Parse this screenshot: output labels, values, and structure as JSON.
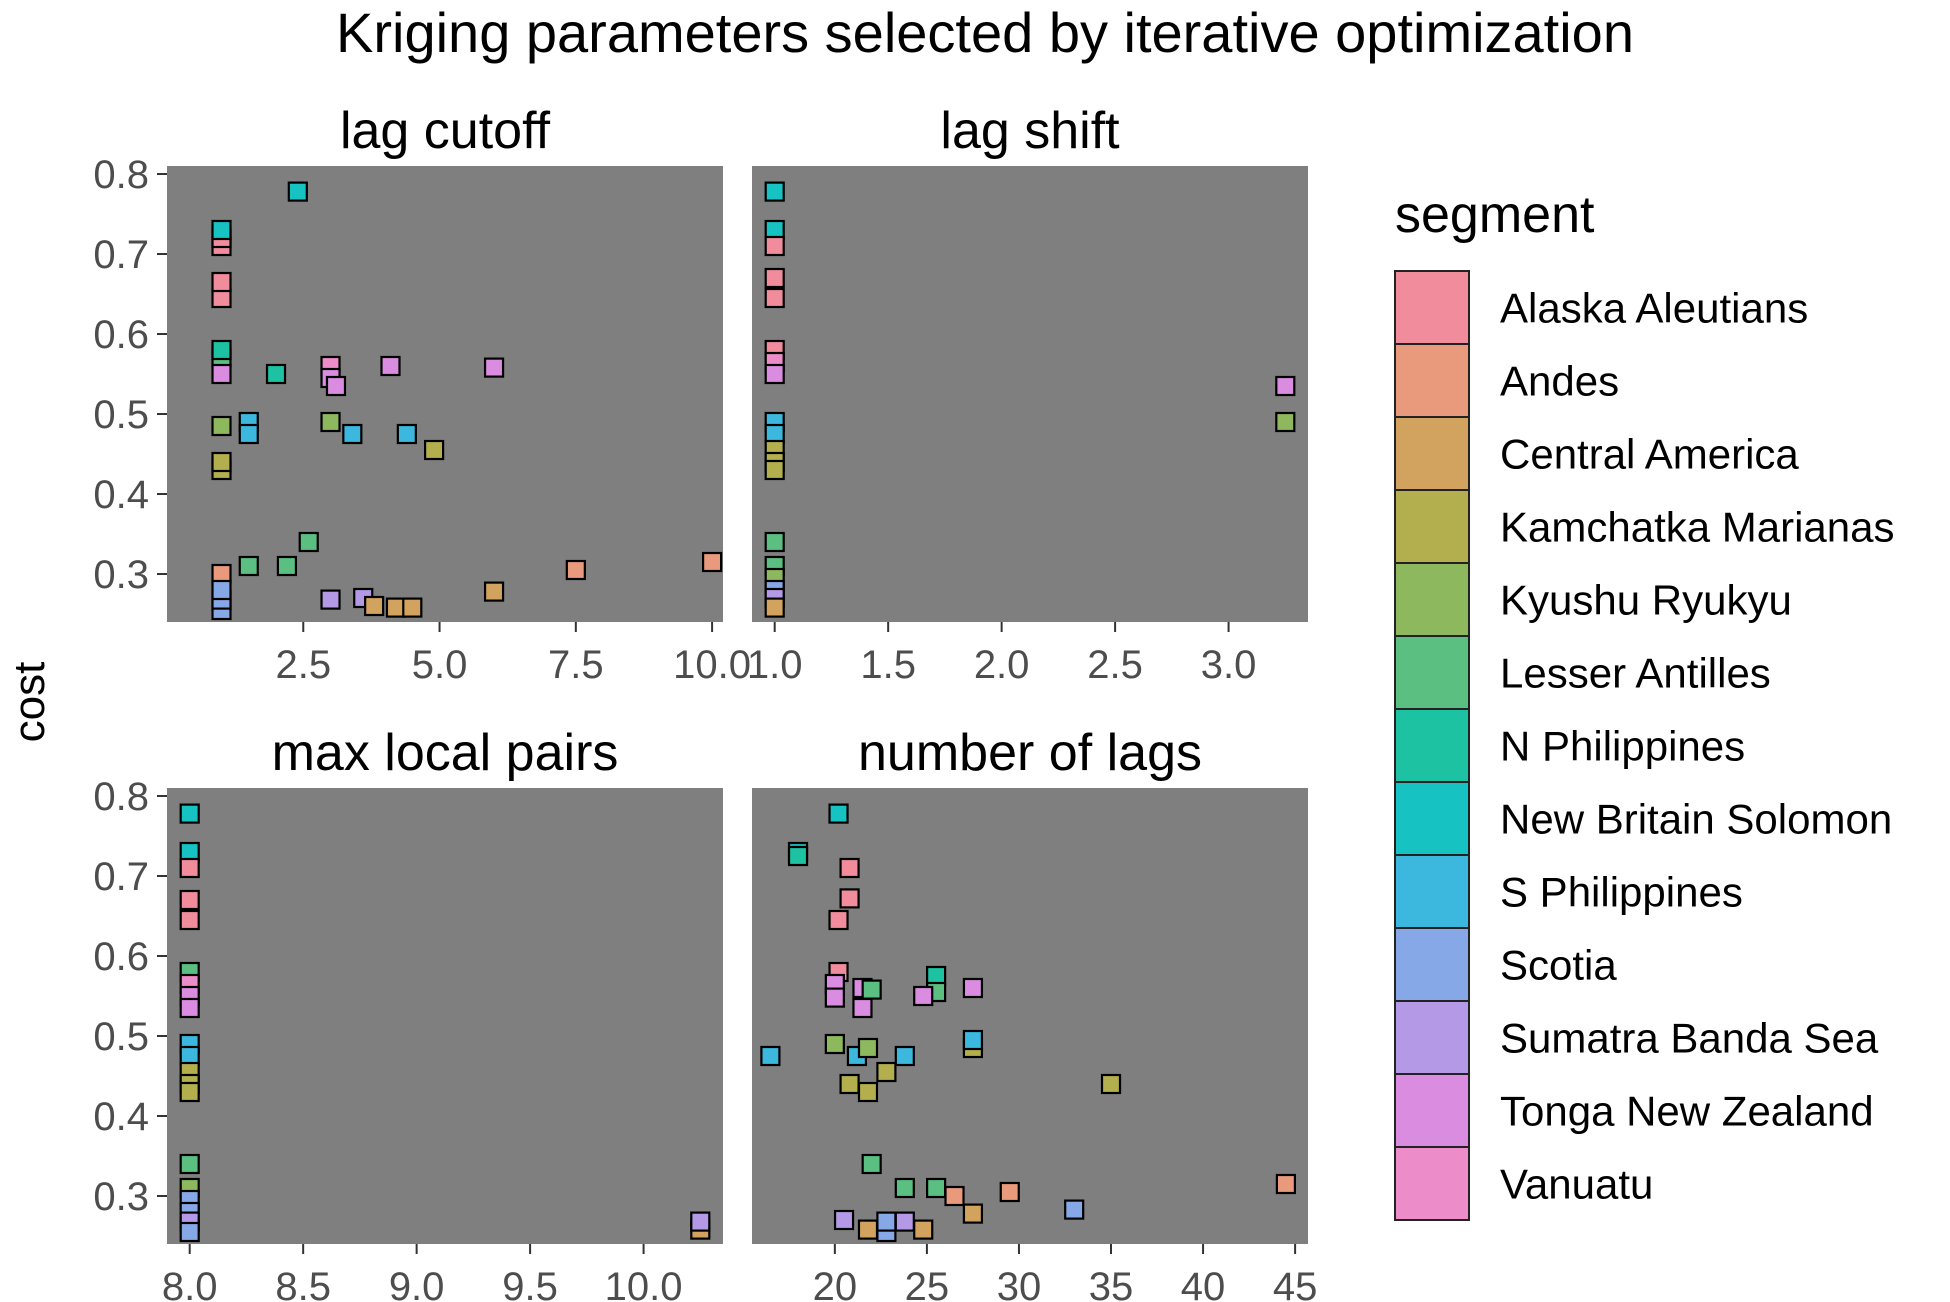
{
  "chart_data": {
    "type": "scatter",
    "title": "Kriging parameters selected by iterative optimization",
    "ylabel": "cost",
    "legend": {
      "title": "segment",
      "placement": "right",
      "entries": [
        {
          "name": "Alaska Aleutians",
          "color": "#F08C9C"
        },
        {
          "name": "Andes",
          "color": "#E99A7C"
        },
        {
          "name": "Central America",
          "color": "#D2A35E"
        },
        {
          "name": "Kamchatka Marianas",
          "color": "#B3AE4E"
        },
        {
          "name": "Kyushu Ryukyu",
          "color": "#8EB85E"
        },
        {
          "name": "Lesser Antilles",
          "color": "#5CBF82"
        },
        {
          "name": "N Philippines",
          "color": "#1DC2A2"
        },
        {
          "name": "New Britain Solomon",
          "color": "#17C2C2"
        },
        {
          "name": "S Philippines",
          "color": "#3CB8DE"
        },
        {
          "name": "Scotia",
          "color": "#86A8E6"
        },
        {
          "name": "Sumatra Banda Sea",
          "color": "#B49AE6"
        },
        {
          "name": "Tonga New Zealand",
          "color": "#DA8CE0"
        },
        {
          "name": "Vanuatu",
          "color": "#EC8CC8"
        }
      ]
    },
    "panel_background": "#7F7F7F",
    "ylim": [
      0.24,
      0.81
    ],
    "yticks": [
      "0.3",
      "0.4",
      "0.5",
      "0.6",
      "0.7",
      "0.8"
    ],
    "panels": [
      {
        "title": "lag cutoff",
        "xlim": [
          0.0,
          10.2
        ],
        "xticks": [
          "2.5",
          "5.0",
          "7.5",
          "10.0"
        ],
        "points": [
          {
            "x": 1.0,
            "y": 0.645,
            "s": "Alaska Aleutians"
          },
          {
            "x": 1.0,
            "y": 0.665,
            "s": "Alaska Aleutians"
          },
          {
            "x": 1.0,
            "y": 0.71,
            "s": "Alaska Aleutians"
          },
          {
            "x": 1.0,
            "y": 0.72,
            "s": "Alaska Aleutians"
          },
          {
            "x": 1.0,
            "y": 0.3,
            "s": "Andes"
          },
          {
            "x": 1.0,
            "y": 0.43,
            "s": "Kamchatka Marianas"
          },
          {
            "x": 1.0,
            "y": 0.44,
            "s": "Kamchatka Marianas"
          },
          {
            "x": 1.0,
            "y": 0.485,
            "s": "Kyushu Ryukyu"
          },
          {
            "x": 1.0,
            "y": 0.57,
            "s": "Lesser Antilles"
          },
          {
            "x": 1.0,
            "y": 0.58,
            "s": "N Philippines"
          },
          {
            "x": 1.0,
            "y": 0.73,
            "s": "New Britain Solomon"
          },
          {
            "x": 1.0,
            "y": 0.255,
            "s": "Scotia"
          },
          {
            "x": 1.0,
            "y": 0.268,
            "s": "Scotia"
          },
          {
            "x": 1.0,
            "y": 0.28,
            "s": "Scotia"
          },
          {
            "x": 1.0,
            "y": 0.55,
            "s": "Tonga New Zealand"
          },
          {
            "x": 2.4,
            "y": 0.778,
            "s": "New Britain Solomon"
          },
          {
            "x": 2.0,
            "y": 0.55,
            "s": "N Philippines"
          },
          {
            "x": 1.5,
            "y": 0.49,
            "s": "S Philippines"
          },
          {
            "x": 1.5,
            "y": 0.475,
            "s": "S Philippines"
          },
          {
            "x": 1.5,
            "y": 0.31,
            "s": "Lesser Antilles"
          },
          {
            "x": 2.2,
            "y": 0.31,
            "s": "Lesser Antilles"
          },
          {
            "x": 2.6,
            "y": 0.34,
            "s": "Lesser Antilles"
          },
          {
            "x": 3.0,
            "y": 0.56,
            "s": "Vanuatu"
          },
          {
            "x": 3.0,
            "y": 0.545,
            "s": "Tonga New Zealand"
          },
          {
            "x": 3.1,
            "y": 0.535,
            "s": "Tonga New Zealand"
          },
          {
            "x": 3.0,
            "y": 0.49,
            "s": "Kyushu Ryukyu"
          },
          {
            "x": 3.4,
            "y": 0.475,
            "s": "S Philippines"
          },
          {
            "x": 3.0,
            "y": 0.268,
            "s": "Sumatra Banda Sea"
          },
          {
            "x": 3.6,
            "y": 0.27,
            "s": "Sumatra Banda Sea"
          },
          {
            "x": 3.8,
            "y": 0.26,
            "s": "Central America"
          },
          {
            "x": 4.1,
            "y": 0.56,
            "s": "Tonga New Zealand"
          },
          {
            "x": 4.4,
            "y": 0.475,
            "s": "S Philippines"
          },
          {
            "x": 4.2,
            "y": 0.258,
            "s": "Central America"
          },
          {
            "x": 4.5,
            "y": 0.258,
            "s": "Central America"
          },
          {
            "x": 4.9,
            "y": 0.455,
            "s": "Kamchatka Marianas"
          },
          {
            "x": 6.0,
            "y": 0.558,
            "s": "Tonga New Zealand"
          },
          {
            "x": 6.0,
            "y": 0.278,
            "s": "Central America"
          },
          {
            "x": 7.5,
            "y": 0.305,
            "s": "Andes"
          },
          {
            "x": 10.0,
            "y": 0.315,
            "s": "Andes"
          }
        ]
      },
      {
        "title": "lag shift",
        "xlim": [
          0.9,
          3.35
        ],
        "xticks": [
          "1.0",
          "1.5",
          "2.0",
          "2.5",
          "3.0"
        ],
        "points": [
          {
            "x": 1.0,
            "y": 0.778,
            "s": "New Britain Solomon"
          },
          {
            "x": 1.0,
            "y": 0.73,
            "s": "New Britain Solomon"
          },
          {
            "x": 1.0,
            "y": 0.71,
            "s": "Alaska Aleutians"
          },
          {
            "x": 1.0,
            "y": 0.67,
            "s": "Alaska Aleutians"
          },
          {
            "x": 1.0,
            "y": 0.645,
            "s": "Alaska Aleutians"
          },
          {
            "x": 1.0,
            "y": 0.58,
            "s": "Alaska Aleutians"
          },
          {
            "x": 1.0,
            "y": 0.565,
            "s": "Vanuatu"
          },
          {
            "x": 1.0,
            "y": 0.55,
            "s": "Tonga New Zealand"
          },
          {
            "x": 1.0,
            "y": 0.49,
            "s": "S Philippines"
          },
          {
            "x": 1.0,
            "y": 0.475,
            "s": "S Philippines"
          },
          {
            "x": 1.0,
            "y": 0.455,
            "s": "Kamchatka Marianas"
          },
          {
            "x": 1.0,
            "y": 0.44,
            "s": "Kamchatka Marianas"
          },
          {
            "x": 1.0,
            "y": 0.43,
            "s": "Kamchatka Marianas"
          },
          {
            "x": 1.0,
            "y": 0.34,
            "s": "Lesser Antilles"
          },
          {
            "x": 1.0,
            "y": 0.31,
            "s": "Lesser Antilles"
          },
          {
            "x": 1.0,
            "y": 0.295,
            "s": "Kyushu Ryukyu"
          },
          {
            "x": 1.0,
            "y": 0.28,
            "s": "Scotia"
          },
          {
            "x": 1.0,
            "y": 0.27,
            "s": "Sumatra Banda Sea"
          },
          {
            "x": 1.0,
            "y": 0.258,
            "s": "Central America"
          },
          {
            "x": 3.25,
            "y": 0.535,
            "s": "Tonga New Zealand"
          },
          {
            "x": 3.25,
            "y": 0.49,
            "s": "Kyushu Ryukyu"
          }
        ]
      },
      {
        "title": "max local pairs",
        "xlim": [
          7.9,
          10.35
        ],
        "xticks": [
          "8.0",
          "8.5",
          "9.0",
          "9.5",
          "10.0"
        ],
        "points": [
          {
            "x": 8.0,
            "y": 0.778,
            "s": "New Britain Solomon"
          },
          {
            "x": 8.0,
            "y": 0.73,
            "s": "New Britain Solomon"
          },
          {
            "x": 8.0,
            "y": 0.71,
            "s": "Alaska Aleutians"
          },
          {
            "x": 8.0,
            "y": 0.67,
            "s": "Alaska Aleutians"
          },
          {
            "x": 8.0,
            "y": 0.645,
            "s": "Alaska Aleutians"
          },
          {
            "x": 8.0,
            "y": 0.58,
            "s": "Lesser Antilles"
          },
          {
            "x": 8.0,
            "y": 0.565,
            "s": "Vanuatu"
          },
          {
            "x": 8.0,
            "y": 0.55,
            "s": "Tonga New Zealand"
          },
          {
            "x": 8.0,
            "y": 0.535,
            "s": "Tonga New Zealand"
          },
          {
            "x": 8.0,
            "y": 0.49,
            "s": "S Philippines"
          },
          {
            "x": 8.0,
            "y": 0.475,
            "s": "S Philippines"
          },
          {
            "x": 8.0,
            "y": 0.455,
            "s": "Kamchatka Marianas"
          },
          {
            "x": 8.0,
            "y": 0.44,
            "s": "Kamchatka Marianas"
          },
          {
            "x": 8.0,
            "y": 0.43,
            "s": "Kamchatka Marianas"
          },
          {
            "x": 8.0,
            "y": 0.34,
            "s": "Lesser Antilles"
          },
          {
            "x": 8.0,
            "y": 0.31,
            "s": "Kyushu Ryukyu"
          },
          {
            "x": 8.0,
            "y": 0.295,
            "s": "Scotia"
          },
          {
            "x": 8.0,
            "y": 0.28,
            "s": "Scotia"
          },
          {
            "x": 8.0,
            "y": 0.268,
            "s": "Sumatra Banda Sea"
          },
          {
            "x": 8.0,
            "y": 0.255,
            "s": "Scotia"
          },
          {
            "x": 10.25,
            "y": 0.258,
            "s": "Central America"
          },
          {
            "x": 10.25,
            "y": 0.268,
            "s": "Sumatra Banda Sea"
          }
        ]
      },
      {
        "title": "number of lags",
        "xlim": [
          15.5,
          45.7
        ],
        "xticks": [
          "20",
          "25",
          "30",
          "35",
          "40",
          "45"
        ],
        "points": [
          {
            "x": 20.2,
            "y": 0.778,
            "s": "New Britain Solomon"
          },
          {
            "x": 18.0,
            "y": 0.73,
            "s": "New Britain Solomon"
          },
          {
            "x": 18.0,
            "y": 0.725,
            "s": "N Philippines"
          },
          {
            "x": 20.8,
            "y": 0.71,
            "s": "Alaska Aleutians"
          },
          {
            "x": 20.8,
            "y": 0.672,
            "s": "Alaska Aleutians"
          },
          {
            "x": 20.2,
            "y": 0.645,
            "s": "Alaska Aleutians"
          },
          {
            "x": 20.2,
            "y": 0.58,
            "s": "Alaska Aleutians"
          },
          {
            "x": 20.0,
            "y": 0.565,
            "s": "Tonga New Zealand"
          },
          {
            "x": 20.0,
            "y": 0.548,
            "s": "Tonga New Zealand"
          },
          {
            "x": 21.5,
            "y": 0.535,
            "s": "Tonga New Zealand"
          },
          {
            "x": 21.5,
            "y": 0.56,
            "s": "Tonga New Zealand"
          },
          {
            "x": 22.0,
            "y": 0.558,
            "s": "Lesser Antilles"
          },
          {
            "x": 25.5,
            "y": 0.575,
            "s": "N Philippines"
          },
          {
            "x": 25.5,
            "y": 0.555,
            "s": "Lesser Antilles"
          },
          {
            "x": 24.8,
            "y": 0.55,
            "s": "Tonga New Zealand"
          },
          {
            "x": 27.5,
            "y": 0.56,
            "s": "Tonga New Zealand"
          },
          {
            "x": 16.5,
            "y": 0.475,
            "s": "S Philippines"
          },
          {
            "x": 20.0,
            "y": 0.49,
            "s": "Kyushu Ryukyu"
          },
          {
            "x": 21.2,
            "y": 0.475,
            "s": "S Philippines"
          },
          {
            "x": 21.8,
            "y": 0.485,
            "s": "Kyushu Ryukyu"
          },
          {
            "x": 20.8,
            "y": 0.44,
            "s": "Kamchatka Marianas"
          },
          {
            "x": 21.8,
            "y": 0.43,
            "s": "Kamchatka Marianas"
          },
          {
            "x": 22.8,
            "y": 0.455,
            "s": "Kamchatka Marianas"
          },
          {
            "x": 23.8,
            "y": 0.475,
            "s": "S Philippines"
          },
          {
            "x": 27.5,
            "y": 0.485,
            "s": "Kamchatka Marianas"
          },
          {
            "x": 27.5,
            "y": 0.495,
            "s": "S Philippines"
          },
          {
            "x": 35.0,
            "y": 0.44,
            "s": "Kamchatka Marianas"
          },
          {
            "x": 22.0,
            "y": 0.34,
            "s": "Lesser Antilles"
          },
          {
            "x": 23.8,
            "y": 0.31,
            "s": "Lesser Antilles"
          },
          {
            "x": 25.5,
            "y": 0.31,
            "s": "Lesser Antilles"
          },
          {
            "x": 26.5,
            "y": 0.3,
            "s": "Andes"
          },
          {
            "x": 29.5,
            "y": 0.305,
            "s": "Andes"
          },
          {
            "x": 33.0,
            "y": 0.283,
            "s": "Scotia"
          },
          {
            "x": 44.5,
            "y": 0.315,
            "s": "Andes"
          },
          {
            "x": 20.5,
            "y": 0.27,
            "s": "Sumatra Banda Sea"
          },
          {
            "x": 21.8,
            "y": 0.258,
            "s": "Central America"
          },
          {
            "x": 22.8,
            "y": 0.255,
            "s": "Scotia"
          },
          {
            "x": 22.8,
            "y": 0.268,
            "s": "Scotia"
          },
          {
            "x": 23.8,
            "y": 0.268,
            "s": "Sumatra Banda Sea"
          },
          {
            "x": 24.8,
            "y": 0.258,
            "s": "Central America"
          },
          {
            "x": 27.5,
            "y": 0.278,
            "s": "Central America"
          }
        ]
      }
    ]
  }
}
